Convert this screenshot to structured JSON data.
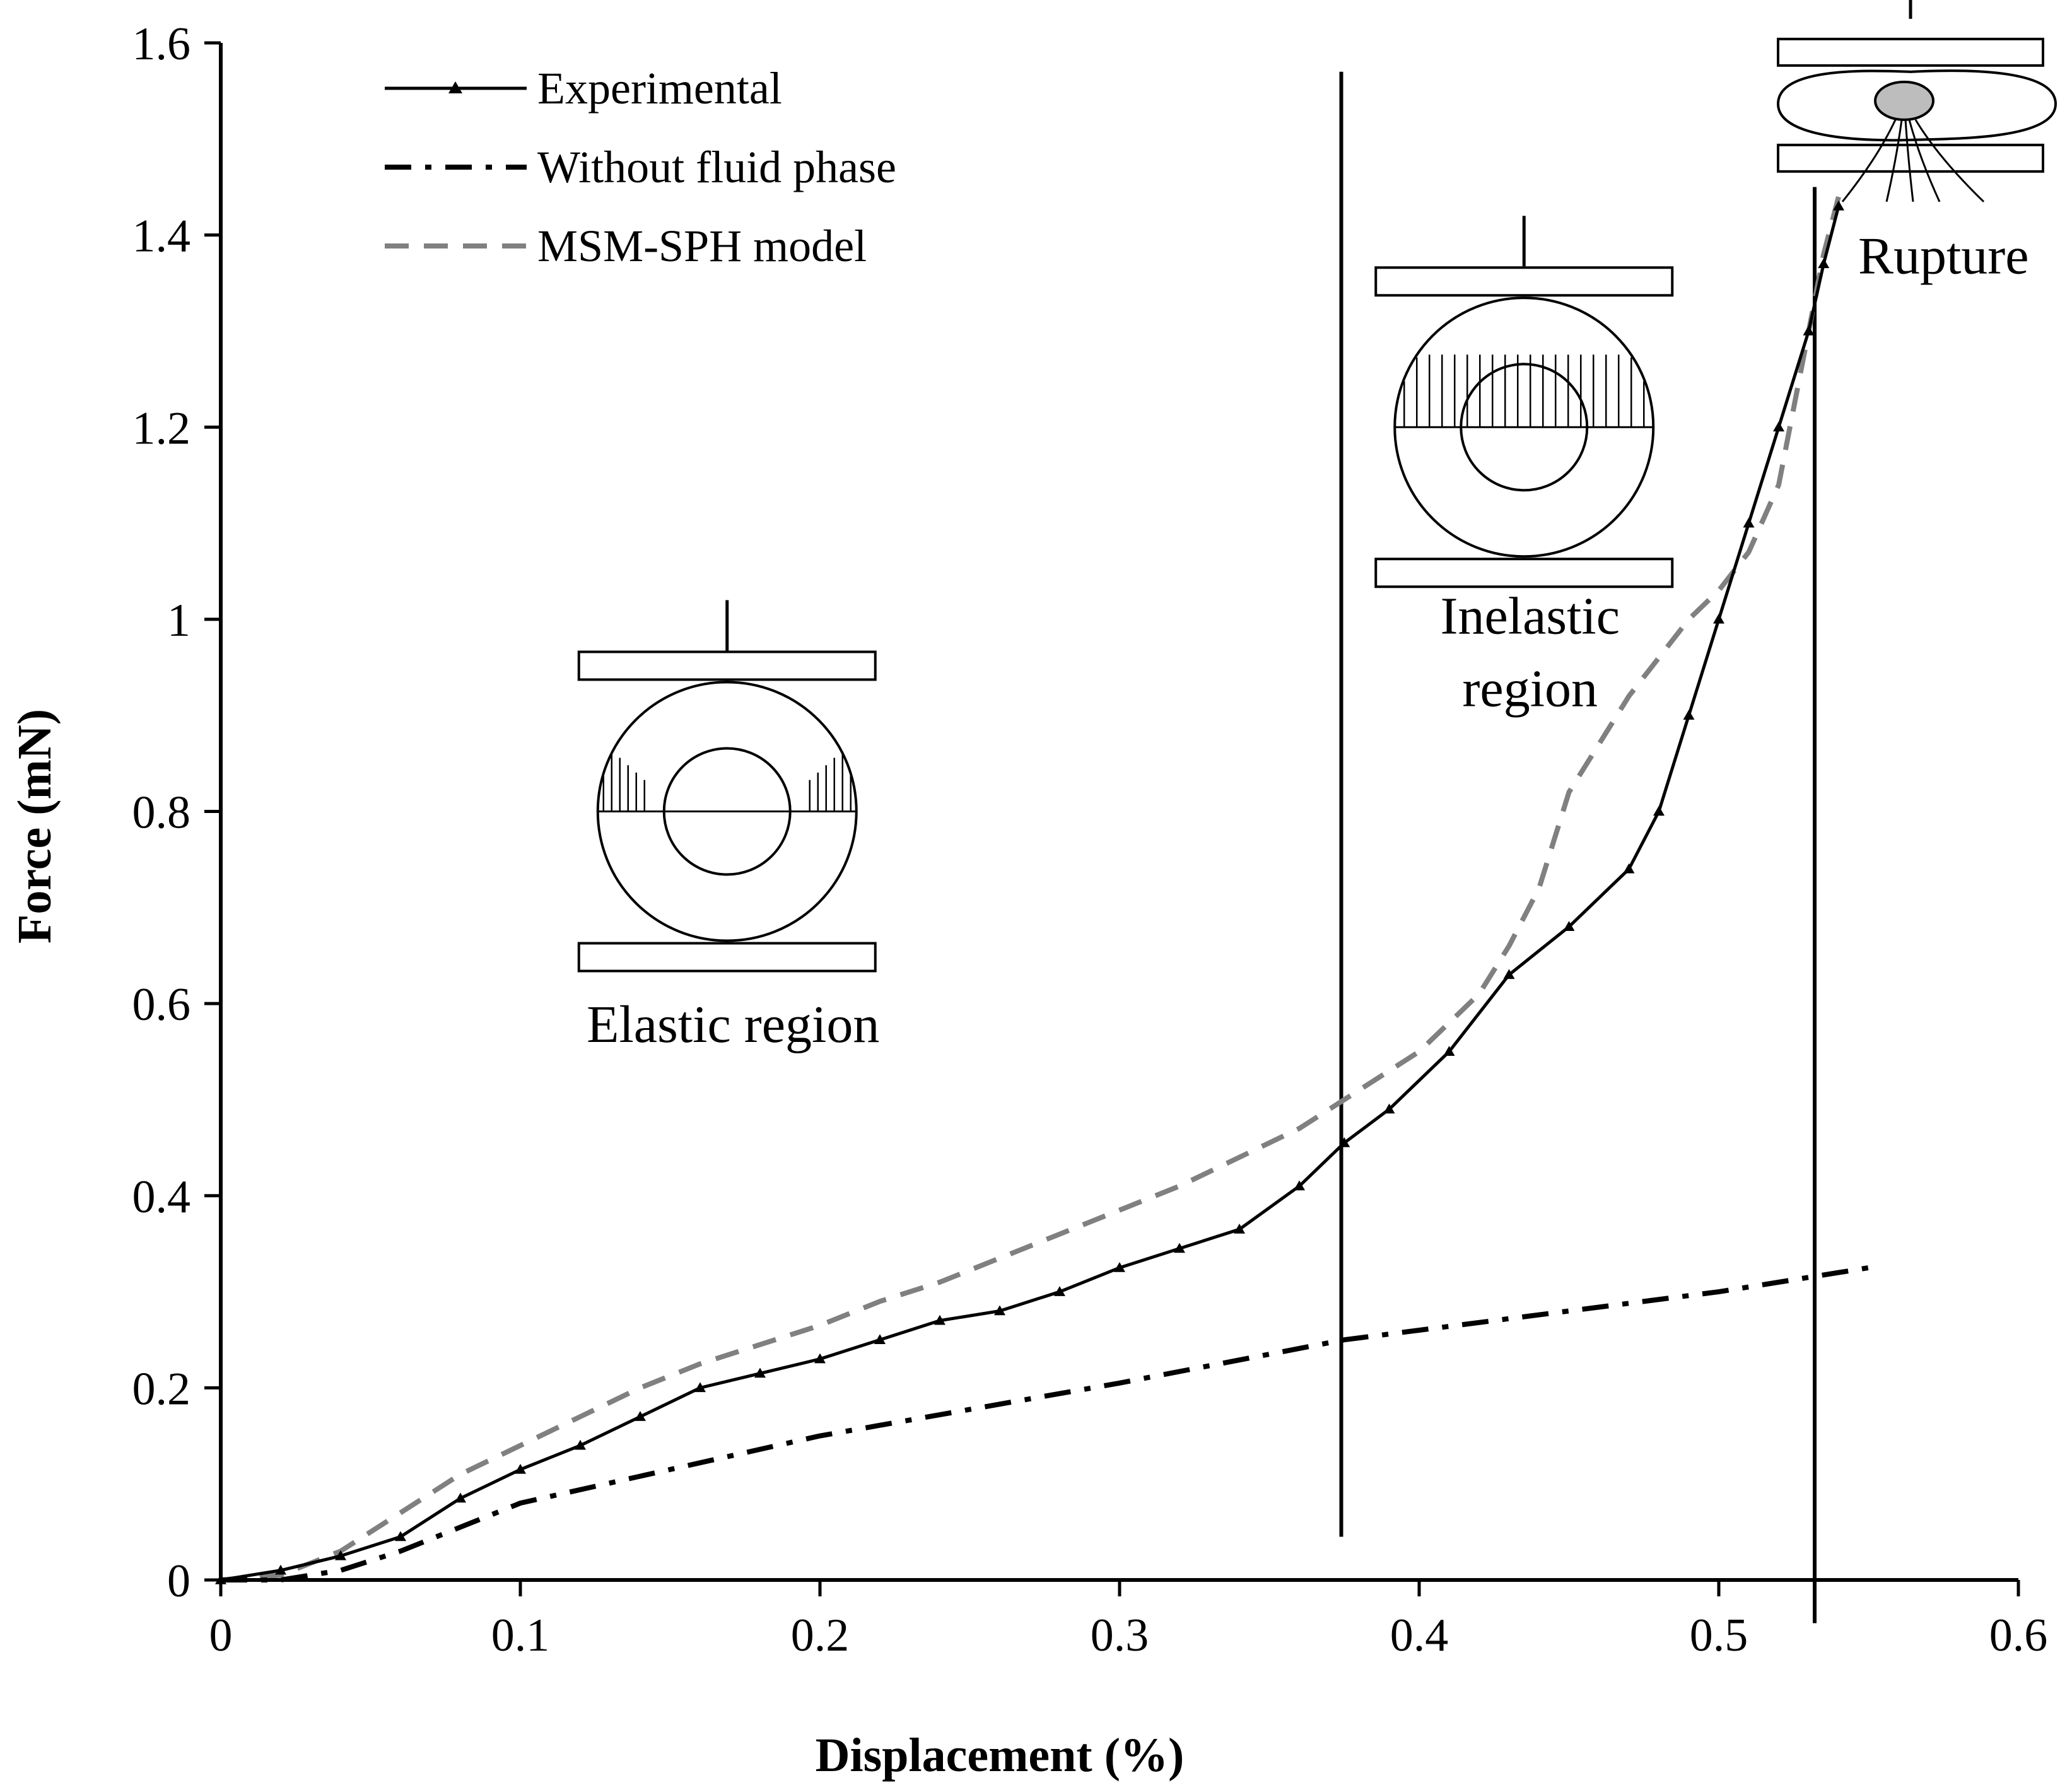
{
  "chart_data": {
    "type": "line",
    "title": "",
    "xlabel": "Displacement (%)",
    "ylabel": "Force (mN)",
    "xlim": [
      0,
      0.6
    ],
    "ylim": [
      0,
      1.6
    ],
    "xticks": [
      "0",
      "0.1",
      "0.2",
      "0.3",
      "0.4",
      "0.5",
      "0.6"
    ],
    "yticks": [
      "0",
      "0.2",
      "0.4",
      "0.6",
      "0.8",
      "1",
      "1.2",
      "1.4",
      "1.6"
    ],
    "grid": false,
    "legend_position": "top-left",
    "series": [
      {
        "name": "Experimental",
        "style": "solid-triangle-markers",
        "color": "#000000",
        "x": [
          0,
          0.02,
          0.04,
          0.06,
          0.08,
          0.1,
          0.12,
          0.14,
          0.16,
          0.18,
          0.2,
          0.22,
          0.24,
          0.26,
          0.28,
          0.3,
          0.32,
          0.34,
          0.36,
          0.375,
          0.39,
          0.41,
          0.43,
          0.45,
          0.47,
          0.48,
          0.49,
          0.5,
          0.51,
          0.52,
          0.53,
          0.535,
          0.54
        ],
        "y": [
          0,
          0.01,
          0.025,
          0.045,
          0.085,
          0.115,
          0.14,
          0.17,
          0.2,
          0.215,
          0.23,
          0.25,
          0.27,
          0.28,
          0.3,
          0.325,
          0.345,
          0.365,
          0.41,
          0.455,
          0.49,
          0.55,
          0.63,
          0.68,
          0.74,
          0.8,
          0.9,
          1.0,
          1.1,
          1.2,
          1.3,
          1.37,
          1.43
        ]
      },
      {
        "name": "Without fluid phase",
        "style": "dash-dot",
        "color": "#000000",
        "x": [
          0,
          0.02,
          0.04,
          0.06,
          0.1,
          0.2,
          0.3,
          0.375,
          0.45,
          0.5,
          0.55
        ],
        "y": [
          0,
          0.0,
          0.01,
          0.03,
          0.08,
          0.15,
          0.205,
          0.25,
          0.28,
          0.3,
          0.325
        ]
      },
      {
        "name": "MSM-SPH model",
        "style": "dashed",
        "color": "#808080",
        "x": [
          0,
          0.02,
          0.04,
          0.06,
          0.08,
          0.1,
          0.12,
          0.14,
          0.16,
          0.18,
          0.2,
          0.22,
          0.24,
          0.26,
          0.28,
          0.3,
          0.32,
          0.34,
          0.36,
          0.38,
          0.4,
          0.42,
          0.43,
          0.44,
          0.45,
          0.46,
          0.47,
          0.48,
          0.49,
          0.5,
          0.51,
          0.52,
          0.525,
          0.53,
          0.535,
          0.54
        ],
        "y": [
          0,
          0.005,
          0.03,
          0.07,
          0.11,
          0.14,
          0.17,
          0.2,
          0.225,
          0.245,
          0.265,
          0.29,
          0.31,
          0.335,
          0.36,
          0.385,
          0.41,
          0.44,
          0.47,
          0.51,
          0.55,
          0.61,
          0.66,
          0.72,
          0.82,
          0.87,
          0.92,
          0.96,
          1.0,
          1.03,
          1.07,
          1.14,
          1.22,
          1.3,
          1.38,
          1.44
        ]
      }
    ],
    "vertical_lines": [
      {
        "x": 0.374,
        "y_from": 0.045,
        "y_to": 1.57
      },
      {
        "x": 0.532,
        "y_from": -0.045,
        "y_to": 1.45
      }
    ],
    "annotations": [
      {
        "text": "Elastic region",
        "lines": [
          "Elastic region"
        ],
        "x": 0.171,
        "y": 0.56
      },
      {
        "text": "Inelastic region",
        "lines": [
          "Inelastic",
          "region"
        ],
        "x": 0.437,
        "y": 0.985
      },
      {
        "text": "Rupture",
        "lines": [
          "Rupture"
        ],
        "x": 0.575,
        "y": 1.36
      }
    ],
    "diagrams": [
      {
        "name": "elastic-diagram",
        "cx": 0.169,
        "cy": 0.8,
        "stage": "elastic"
      },
      {
        "name": "inelastic-diagram",
        "cx": 0.435,
        "cy": 1.2,
        "stage": "inelastic"
      },
      {
        "name": "rupture-diagram",
        "cx": 0.564,
        "cy": 1.52,
        "stage": "rupture"
      }
    ]
  }
}
